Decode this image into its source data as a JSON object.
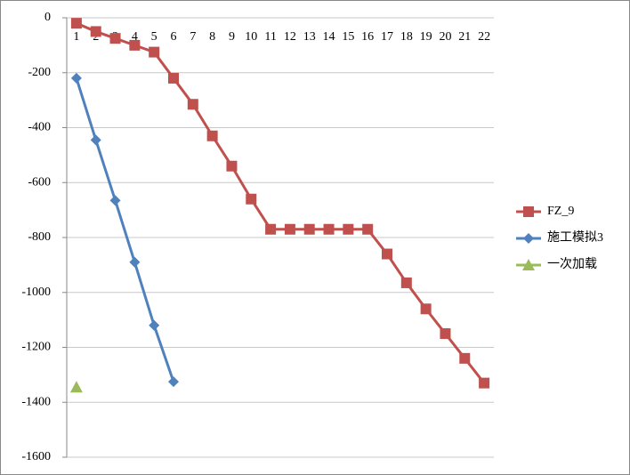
{
  "chart_data": {
    "type": "line",
    "categories": [
      "1",
      "2",
      "3",
      "4",
      "5",
      "6",
      "7",
      "8",
      "9",
      "10",
      "11",
      "12",
      "13",
      "14",
      "15",
      "16",
      "17",
      "18",
      "19",
      "20",
      "21",
      "22"
    ],
    "series": [
      {
        "name": "FZ_9",
        "color": "#c0504d",
        "marker": "square",
        "values": [
          -20,
          -50,
          -75,
          -100,
          -125,
          -220,
          -315,
          -430,
          -540,
          -660,
          -770,
          -770,
          -770,
          -770,
          -770,
          -770,
          -860,
          -965,
          -1060,
          -1150,
          -1240,
          -1330
        ]
      },
      {
        "name": "施工模拟3",
        "color": "#4f81bd",
        "marker": "diamond",
        "values": [
          -220,
          -445,
          -665,
          -890,
          -1120,
          -1325,
          null,
          null,
          null,
          null,
          null,
          null,
          null,
          null,
          null,
          null,
          null,
          null,
          null,
          null,
          null,
          null
        ]
      },
      {
        "name": "一次加载",
        "color": "#9bbb59",
        "marker": "triangle",
        "values": [
          -1345,
          null,
          null,
          null,
          null,
          null,
          null,
          null,
          null,
          null,
          null,
          null,
          null,
          null,
          null,
          null,
          null,
          null,
          null,
          null,
          null,
          null
        ]
      }
    ],
    "ylim": [
      -1600,
      0
    ],
    "yticks": [
      0,
      -200,
      -400,
      -600,
      -800,
      -1000,
      -1200,
      -1400,
      -1600
    ],
    "grid": true,
    "legend": "right"
  }
}
